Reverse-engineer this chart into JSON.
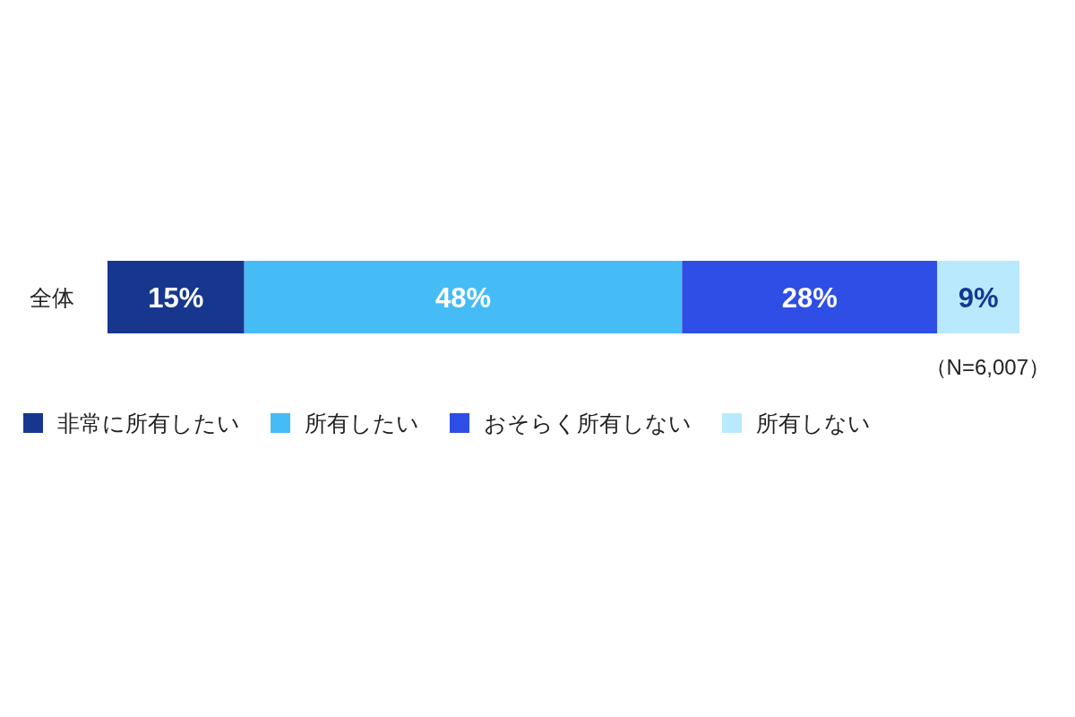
{
  "chart_data": {
    "type": "bar",
    "orientation": "horizontal",
    "stacked": true,
    "categories": [
      "全体"
    ],
    "series": [
      {
        "name": "非常に所有したい",
        "color": "#17378f",
        "values": [
          15
        ],
        "value_labels": [
          "15%"
        ]
      },
      {
        "name": "所有したい",
        "color": "#45bcf6",
        "values": [
          48
        ],
        "value_labels": [
          "48%"
        ]
      },
      {
        "name": "おそらく所有しない",
        "color": "#2f4ee6",
        "values": [
          28
        ],
        "value_labels": [
          "28%"
        ]
      },
      {
        "name": "所有しない",
        "color": "#b8e9fd",
        "values": [
          9
        ],
        "value_labels": [
          "9%"
        ]
      }
    ],
    "tick_labels": "y",
    "legend": "bottom",
    "annotations": [
      "（N=6,007）"
    ]
  }
}
